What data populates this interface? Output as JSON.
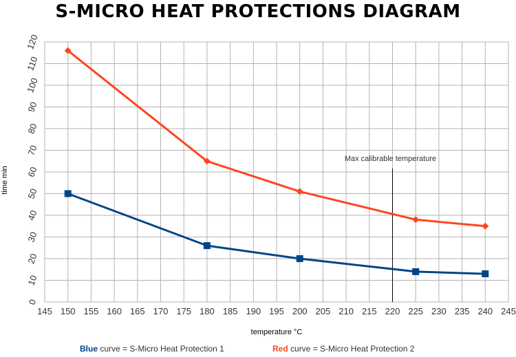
{
  "chart_data": {
    "type": "line",
    "title": "S-MICRO HEAT PROTECTIONS DIAGRAM",
    "xlabel": "temperature °C",
    "ylabel": "time min",
    "xlim": [
      145,
      245
    ],
    "ylim": [
      0,
      120
    ],
    "xticks": [
      145,
      150,
      155,
      160,
      165,
      170,
      175,
      180,
      185,
      190,
      195,
      200,
      205,
      210,
      215,
      220,
      225,
      230,
      235,
      240,
      245
    ],
    "yticks": [
      0,
      10,
      20,
      30,
      40,
      50,
      60,
      70,
      80,
      90,
      100,
      110,
      120
    ],
    "grid": true,
    "series": [
      {
        "name": "S-Micro Heat Protection 2",
        "color": "#ff4420",
        "marker": "diamond",
        "x": [
          150,
          180,
          200,
          225,
          240
        ],
        "y": [
          116,
          65,
          51,
          38,
          35
        ]
      },
      {
        "name": "S-Micro Heat Protection 1",
        "color": "#004586",
        "marker": "square",
        "x": [
          150,
          180,
          200,
          225,
          240
        ],
        "y": [
          50,
          26,
          20,
          14,
          13
        ]
      }
    ],
    "annotations": [
      {
        "type": "vline",
        "x": 220,
        "label": "Max calibrable temperature"
      }
    ],
    "legend": {
      "blue_word": "Blue",
      "blue_text": "curve = S-Micro Heat Protection 1",
      "red_word": "Red",
      "red_text": "curve = S-Micro Heat Protection 2",
      "blue_color": "#004586",
      "red_color": "#ff4420"
    }
  }
}
